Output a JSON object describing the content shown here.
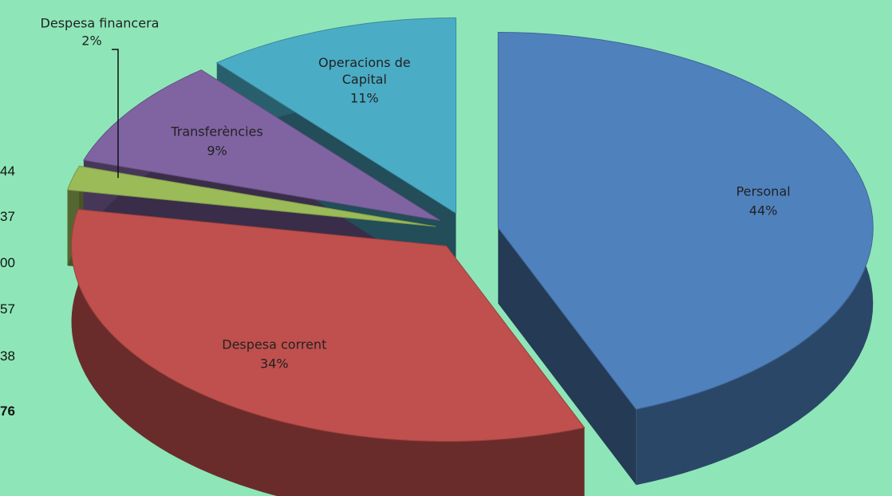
{
  "chart_data": {
    "type": "pie",
    "categories": [
      "Personal",
      "Despesa corrent",
      "Despesa financera",
      "Transferències",
      "Operacions de Capital"
    ],
    "values": [
      44,
      34,
      2,
      9,
      11
    ],
    "value_labels": [
      "44%",
      "34%",
      "2%",
      "9%",
      "11%"
    ],
    "colors": [
      "#4f81bd",
      "#c0504d",
      "#9bbb59",
      "#8064a2",
      "#4bacc6"
    ]
  },
  "table_fragment": [
    "44",
    "37",
    "00",
    "57",
    "38",
    "76"
  ]
}
